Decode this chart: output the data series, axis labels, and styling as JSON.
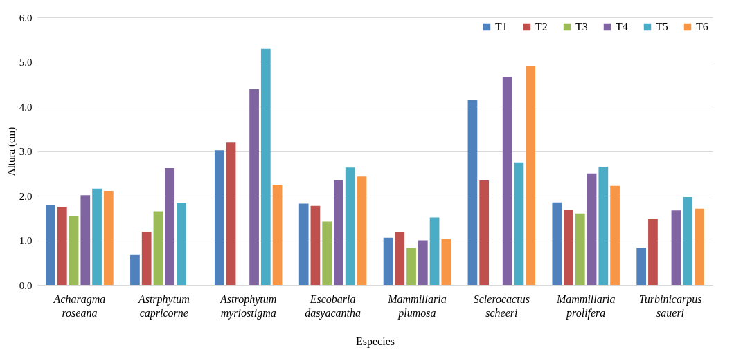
{
  "chart_data": {
    "type": "bar",
    "xlabel": "Especies",
    "ylabel": "Altura (cm)",
    "categories": [
      "Acharagma roseana",
      "Astrphytum capricorne",
      "Astrophytum myriostigma",
      "Escobaria dasyacantha",
      "Mammillaria plumosa",
      "Sclerocactus scheeri",
      "Mammillaria prolifera",
      "Turbinicarpus saueri"
    ],
    "series": [
      {
        "name": "T1",
        "color": "#4f81bd",
        "values": [
          1.8,
          0.67,
          3.02,
          1.82,
          1.06,
          4.15,
          1.85,
          0.83
        ]
      },
      {
        "name": "T2",
        "color": "#c0504d",
        "values": [
          1.75,
          1.19,
          3.19,
          1.77,
          1.18,
          2.34,
          1.68,
          1.49
        ]
      },
      {
        "name": "T3",
        "color": "#9bbb59",
        "values": [
          1.55,
          1.65,
          null,
          1.42,
          0.83,
          null,
          1.6,
          null
        ]
      },
      {
        "name": "T4",
        "color": "#8064a2",
        "values": [
          2.01,
          2.62,
          4.39,
          2.35,
          1.0,
          4.66,
          2.5,
          1.67
        ]
      },
      {
        "name": "T5",
        "color": "#4bacc6",
        "values": [
          2.16,
          1.84,
          5.29,
          2.63,
          1.51,
          2.75,
          2.65,
          1.97
        ]
      },
      {
        "name": "T6",
        "color": "#f79646",
        "values": [
          2.11,
          null,
          2.25,
          2.43,
          1.03,
          4.9,
          2.22,
          1.71
        ]
      }
    ],
    "ylim": [
      0,
      6
    ],
    "yticks": [
      {
        "value": 0,
        "label": "0.0"
      },
      {
        "value": 1,
        "label": "1.0"
      },
      {
        "value": 2,
        "label": "2.0"
      },
      {
        "value": 3,
        "label": "3.0"
      },
      {
        "value": 4,
        "label": "4.0"
      },
      {
        "value": 5,
        "label": "5.0"
      },
      {
        "value": 6,
        "label": "6.0"
      }
    ],
    "grid": "y",
    "legend": "top right"
  }
}
